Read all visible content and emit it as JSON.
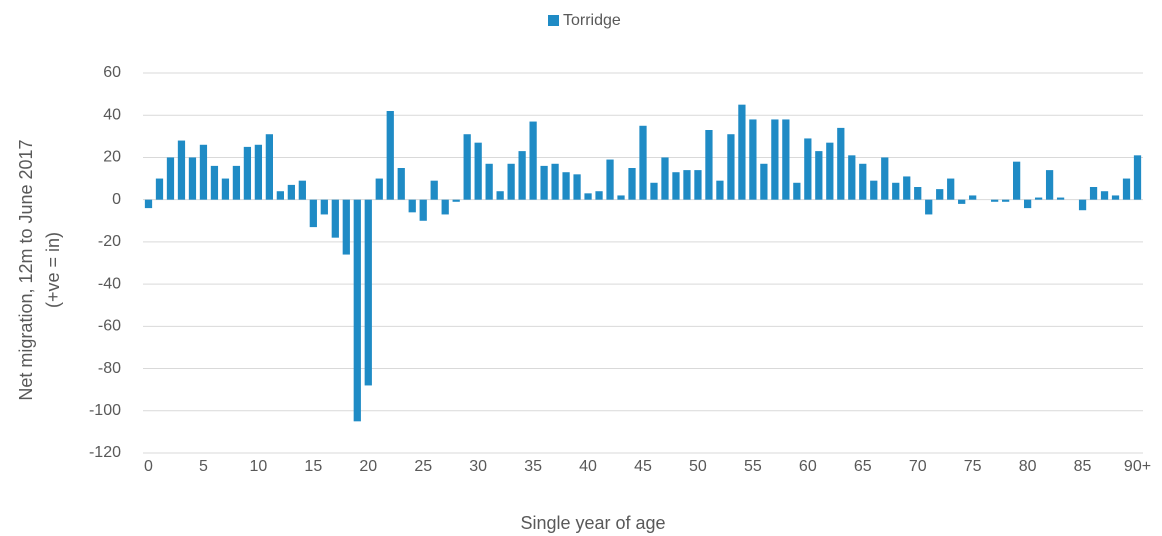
{
  "chart_data": {
    "type": "bar",
    "legend_position": "top",
    "x_label": "Single year of age",
    "y_label": [
      "Net migration, 12m to June 2017",
      "(+ve = in)"
    ],
    "categories": [
      "0",
      null,
      null,
      null,
      null,
      "5",
      null,
      null,
      null,
      null,
      "10",
      null,
      null,
      null,
      null,
      "15",
      null,
      null,
      null,
      null,
      "20",
      null,
      null,
      null,
      null,
      "25",
      null,
      null,
      null,
      null,
      "30",
      null,
      null,
      null,
      null,
      "35",
      null,
      null,
      null,
      null,
      "40",
      null,
      null,
      null,
      null,
      "45",
      null,
      null,
      null,
      null,
      "50",
      null,
      null,
      null,
      null,
      "55",
      null,
      null,
      null,
      null,
      "60",
      null,
      null,
      null,
      null,
      "65",
      null,
      null,
      null,
      null,
      "70",
      null,
      null,
      null,
      null,
      "75",
      null,
      null,
      null,
      null,
      "80",
      null,
      null,
      null,
      null,
      "85",
      null,
      null,
      null,
      null,
      "90+"
    ],
    "series": [
      {
        "name": "Torridge",
        "color": "#1f8bc5",
        "values": [
          -4,
          10,
          20,
          28,
          20,
          26,
          16,
          10,
          16,
          25,
          26,
          31,
          4,
          7,
          9,
          -13,
          -7,
          -18,
          -26,
          -105,
          -88,
          10,
          42,
          15,
          -6,
          -10,
          9,
          -7,
          -1,
          31,
          27,
          17,
          4,
          17,
          23,
          37,
          16,
          17,
          13,
          12,
          3,
          4,
          19,
          2,
          15,
          35,
          8,
          20,
          13,
          14,
          14,
          33,
          9,
          31,
          45,
          38,
          17,
          38,
          38,
          8,
          29,
          23,
          27,
          34,
          21,
          17,
          9,
          20,
          8,
          11,
          6,
          -7,
          5,
          10,
          -2,
          2,
          0,
          -1,
          -1,
          18,
          -4,
          1,
          14,
          1,
          0,
          -5,
          6,
          4,
          2,
          10,
          21
        ]
      }
    ],
    "ylim": [
      -120,
      60
    ],
    "yticks": [
      -120,
      -100,
      -80,
      -60,
      -40,
      -20,
      0,
      20,
      40,
      60
    ],
    "grid": true
  }
}
